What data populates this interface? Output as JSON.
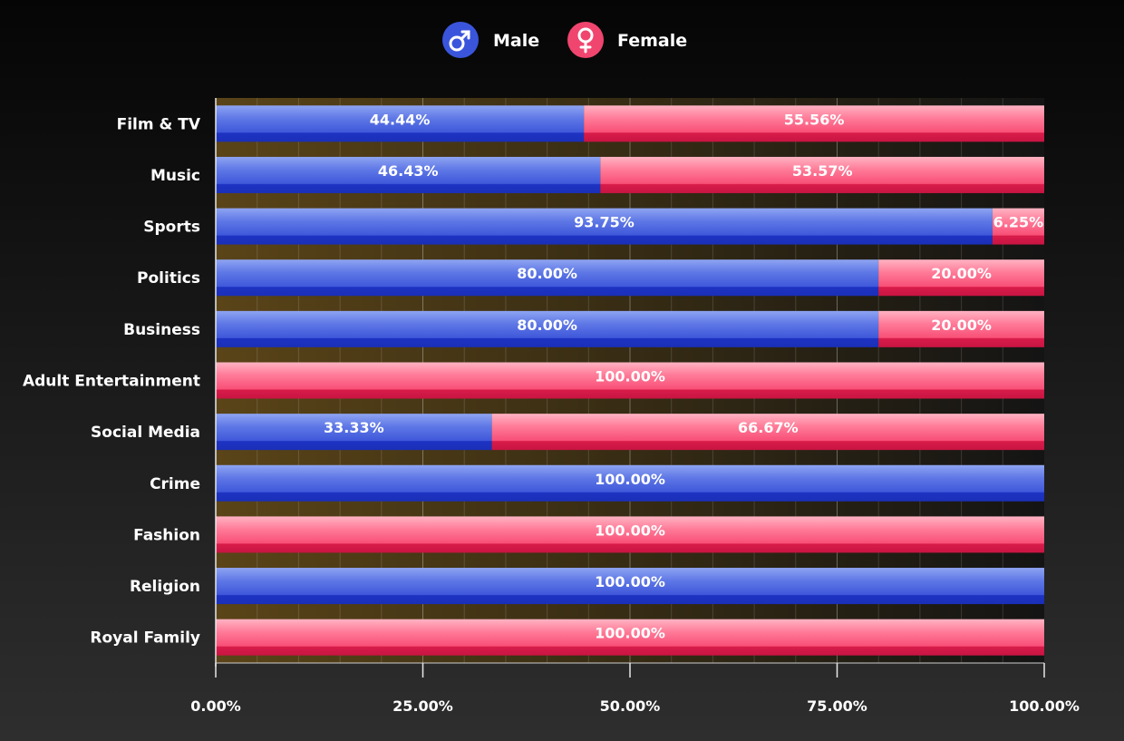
{
  "chart_data": {
    "type": "bar",
    "orientation": "horizontal",
    "stacked": true,
    "normalized": true,
    "categories": [
      "Film & TV",
      "Music",
      "Sports",
      "Politics",
      "Business",
      "Adult Entertainment",
      "Social Media",
      "Crime",
      "Fashion",
      "Religion",
      "Royal Family"
    ],
    "series": [
      {
        "name": "Male",
        "icon": "male-icon",
        "color": "#3548d4",
        "values": [
          44.44,
          46.43,
          93.75,
          80.0,
          80.0,
          0,
          33.33,
          100.0,
          0,
          100.0,
          0
        ]
      },
      {
        "name": "Female",
        "icon": "female-icon",
        "color": "#f0456e",
        "values": [
          55.56,
          53.57,
          6.25,
          20.0,
          20.0,
          100.0,
          66.67,
          0,
          100.0,
          0,
          100.0
        ]
      }
    ],
    "xlim": [
      0,
      100
    ],
    "xticks": [
      0,
      25,
      50,
      75,
      100
    ],
    "xtick_labels": [
      "0.00%",
      "25.00%",
      "50.00%",
      "75.00%",
      "100.00%"
    ],
    "value_format": "percent_2dp",
    "legend_position": "top-center",
    "grid": true
  }
}
